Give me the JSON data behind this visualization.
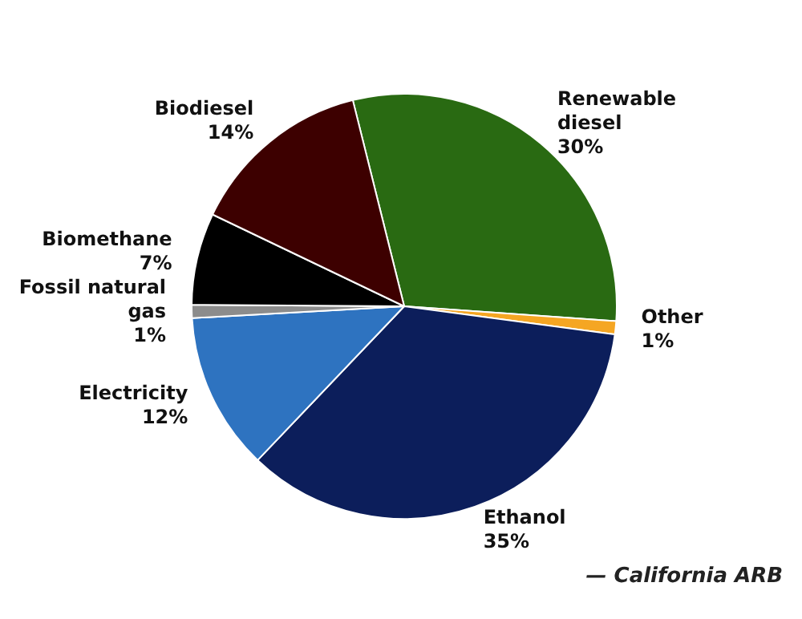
{
  "chart_data": {
    "type": "pie",
    "categories": [
      "Renewable diesel",
      "Other",
      "Ethanol",
      "Electricity",
      "Fossil natural gas",
      "Biomethane",
      "Biodiesel"
    ],
    "values": [
      30,
      1,
      35,
      12,
      1,
      7,
      14
    ],
    "value_labels": [
      "30%",
      "1%",
      "35%",
      "12%",
      "1%",
      "7%",
      "14%"
    ],
    "colors": [
      "#296a12",
      "#f5a623",
      "#0c1e5b",
      "#2e73c0",
      "#8c8c8c",
      "#000000",
      "#3d0000"
    ],
    "legend": false,
    "annotations": [
      "— California ARB"
    ]
  }
}
